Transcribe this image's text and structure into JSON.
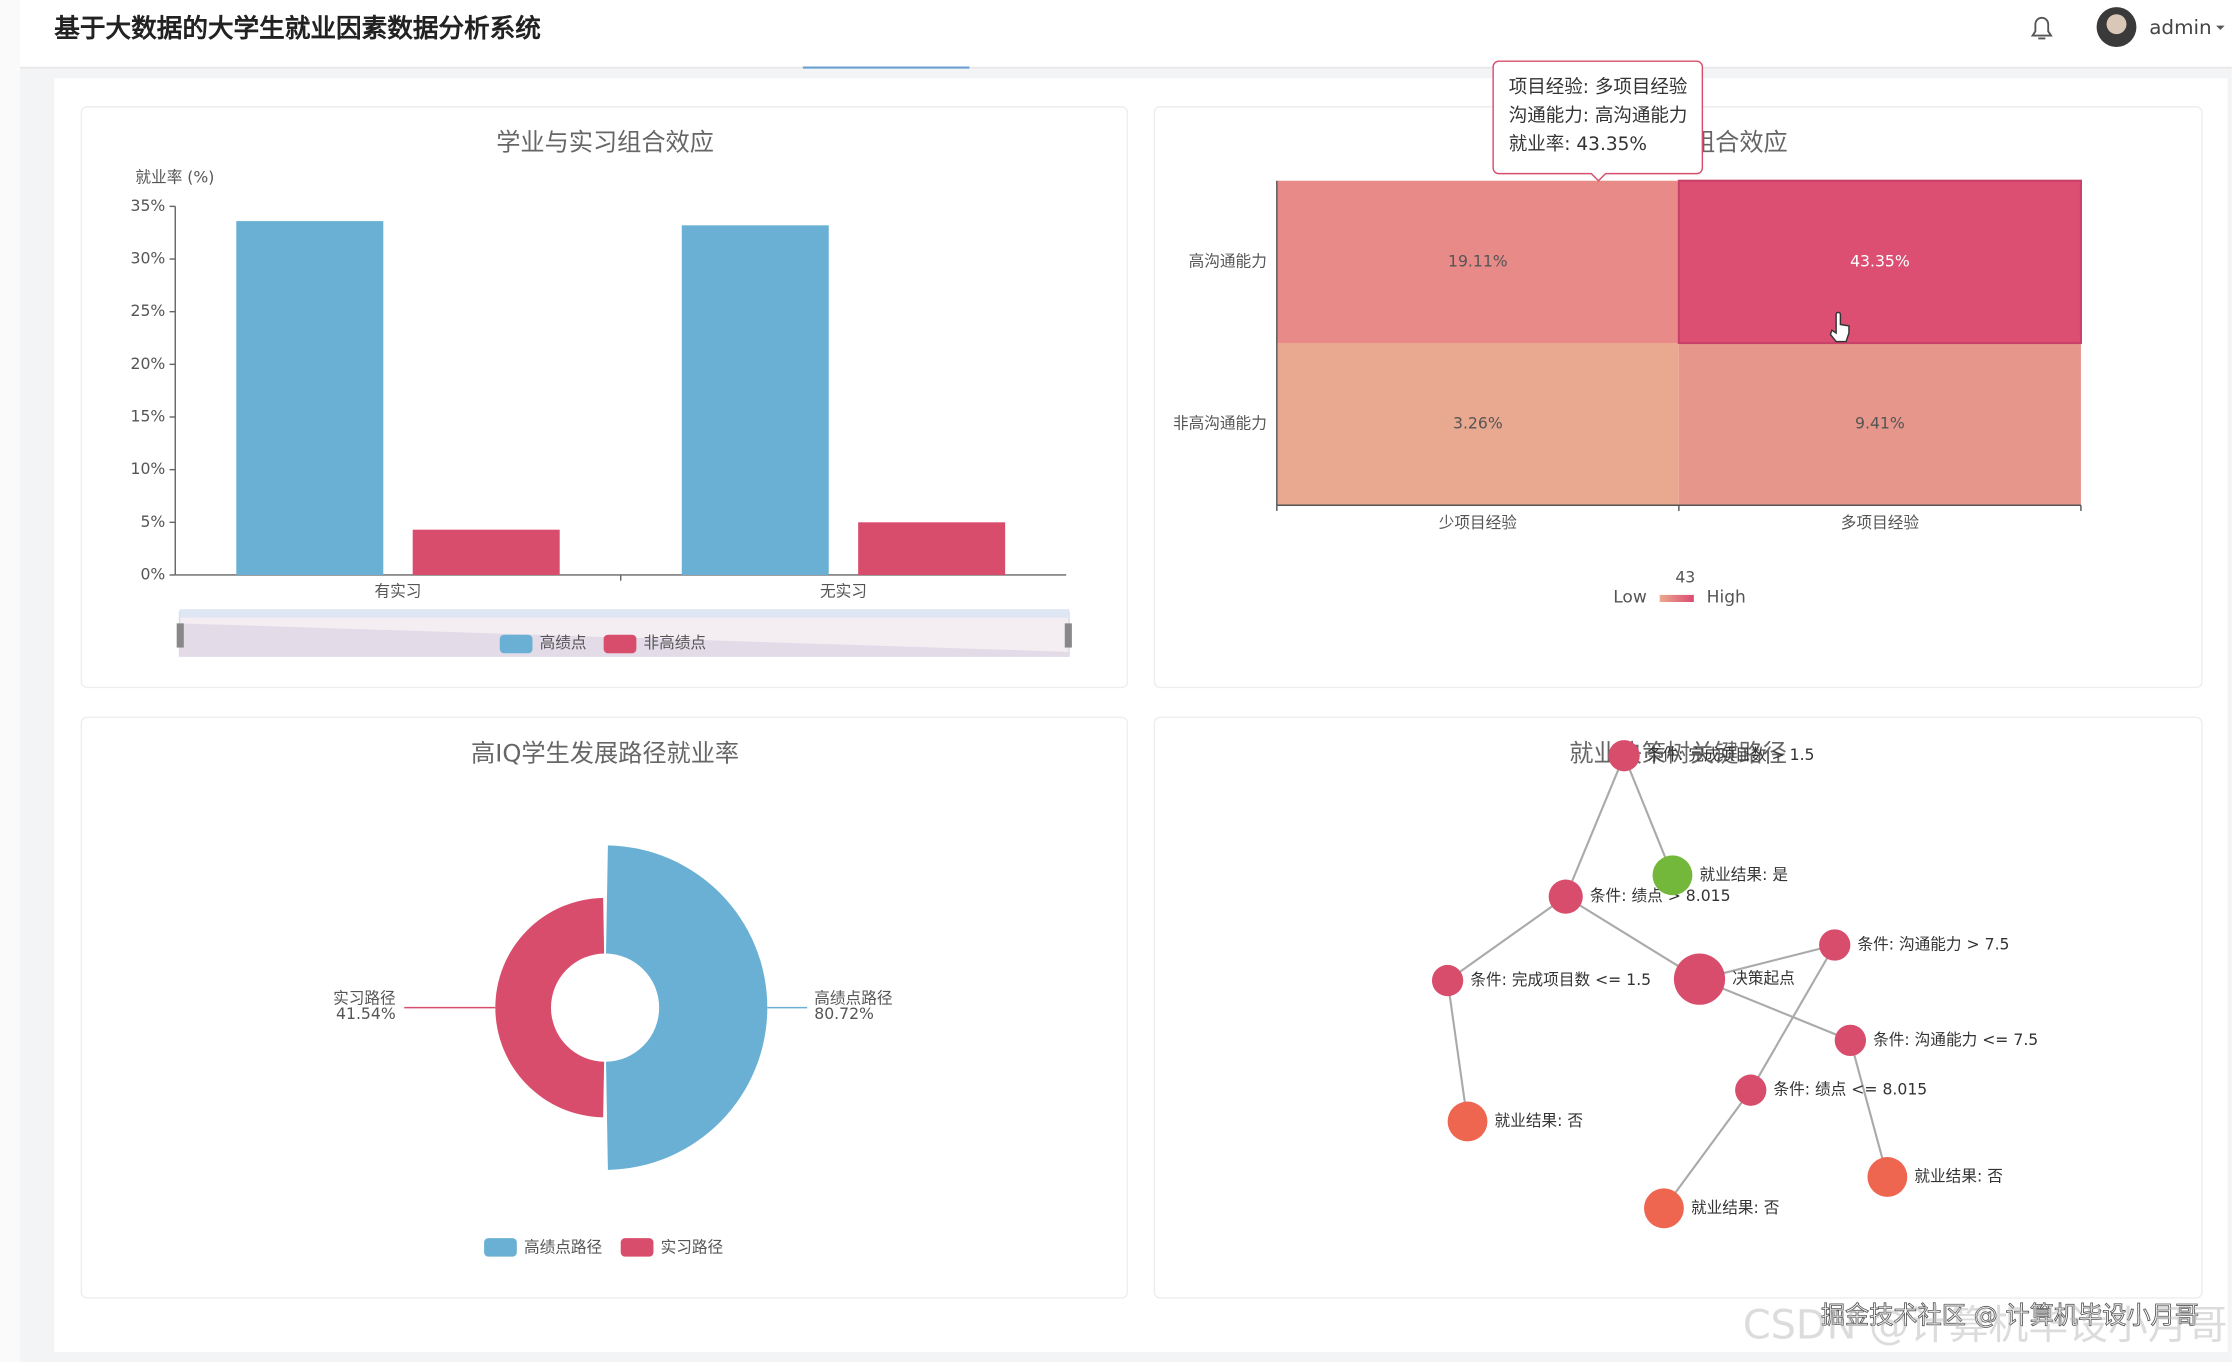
{
  "header": {
    "title": "基于大数据的大学生就业因素数据分析系统",
    "user": "admin"
  },
  "chart_data": [
    {
      "type": "bar",
      "title": "学业与实习组合效应",
      "y_label": "就业率 (%)",
      "categories": [
        "有实习",
        "无实习"
      ],
      "series": [
        {
          "name": "高绩点",
          "color": "#6ab0d4",
          "values": [
            33.6,
            33.2
          ]
        },
        {
          "name": "非高绩点",
          "color": "#d94d6c",
          "values": [
            4.3,
            5.0
          ]
        }
      ],
      "ylim": [
        0,
        35
      ],
      "yticks": [
        {
          "value": 0,
          "label": "0%"
        },
        {
          "value": 5,
          "label": "5%"
        },
        {
          "value": 10,
          "label": "10%"
        },
        {
          "value": 15,
          "label": "15%"
        },
        {
          "value": 20,
          "label": "20%"
        },
        {
          "value": 25,
          "label": "25%"
        },
        {
          "value": 30,
          "label": "30%"
        },
        {
          "value": 35,
          "label": "35%"
        }
      ]
    },
    {
      "type": "heatmap",
      "title": "组合效应",
      "x_categories": [
        "少项目经验",
        "多项目经验"
      ],
      "y_categories": [
        "高沟通能力",
        "非高沟通能力"
      ],
      "values": [
        [
          19.11,
          43.35
        ],
        [
          3.26,
          9.41
        ]
      ],
      "value_labels": [
        [
          "19.11%",
          "43.35%"
        ],
        [
          "3.26%",
          "9.41%"
        ]
      ],
      "colors": [
        [
          "#e88a88",
          "#dc4f72"
        ],
        [
          "#e9a890",
          "#e6968a"
        ]
      ],
      "visual_map": {
        "max": 43,
        "low_label": "Low",
        "high_label": "High",
        "colors": [
          "#eaa98f",
          "#dc4a70"
        ]
      },
      "tooltip": [
        "项目经验: 多项目经验",
        "沟通能力: 高沟通能力",
        "就业率: 43.35%"
      ]
    },
    {
      "type": "pie",
      "title": "高IQ学生发展路径就业率",
      "categories": [
        "高绩点路径",
        "实习路径"
      ],
      "values": [
        80.72,
        41.54
      ],
      "value_labels": [
        "80.72%",
        "41.54%"
      ],
      "colors": [
        "#6ab0d4",
        "#d94d6c"
      ]
    },
    {
      "type": "graph",
      "title": "就业决策树关键路径",
      "nodes": [
        {
          "label": "决策起点",
          "color": "#d94d6c"
        },
        {
          "label": "条件: 绩点 > 8.015",
          "color": "#d94d6c"
        },
        {
          "label": "条件: 完成项目数 > 1.5",
          "color": "#d94d6c"
        },
        {
          "label": "就业结果: 是",
          "color": "#73b83a"
        },
        {
          "label": "条件: 完成项目数 <= 1.5",
          "color": "#d94d6c"
        },
        {
          "label": "就业结果: 否",
          "color": "#ef6650"
        },
        {
          "label": "条件: 沟通能力 > 7.5",
          "color": "#d94d6c"
        },
        {
          "label": "条件: 沟通能力 <= 7.5",
          "color": "#d94d6c"
        },
        {
          "label": "条件: 绩点 <= 8.015",
          "color": "#d94d6c"
        },
        {
          "label": "就业结果: 否",
          "color": "#ef6650"
        },
        {
          "label": "就业结果: 否",
          "color": "#ef6650"
        }
      ],
      "edges": [
        [
          0,
          1
        ],
        [
          1,
          2
        ],
        [
          2,
          3
        ],
        [
          1,
          4
        ],
        [
          4,
          5
        ],
        [
          0,
          6
        ],
        [
          0,
          7
        ],
        [
          6,
          8
        ],
        [
          8,
          9
        ],
        [
          7,
          10
        ]
      ]
    }
  ],
  "watermark": [
    "掘金技术社区 @ 计算机毕设小月哥",
    "CSDN @计算机毕设小月哥"
  ]
}
